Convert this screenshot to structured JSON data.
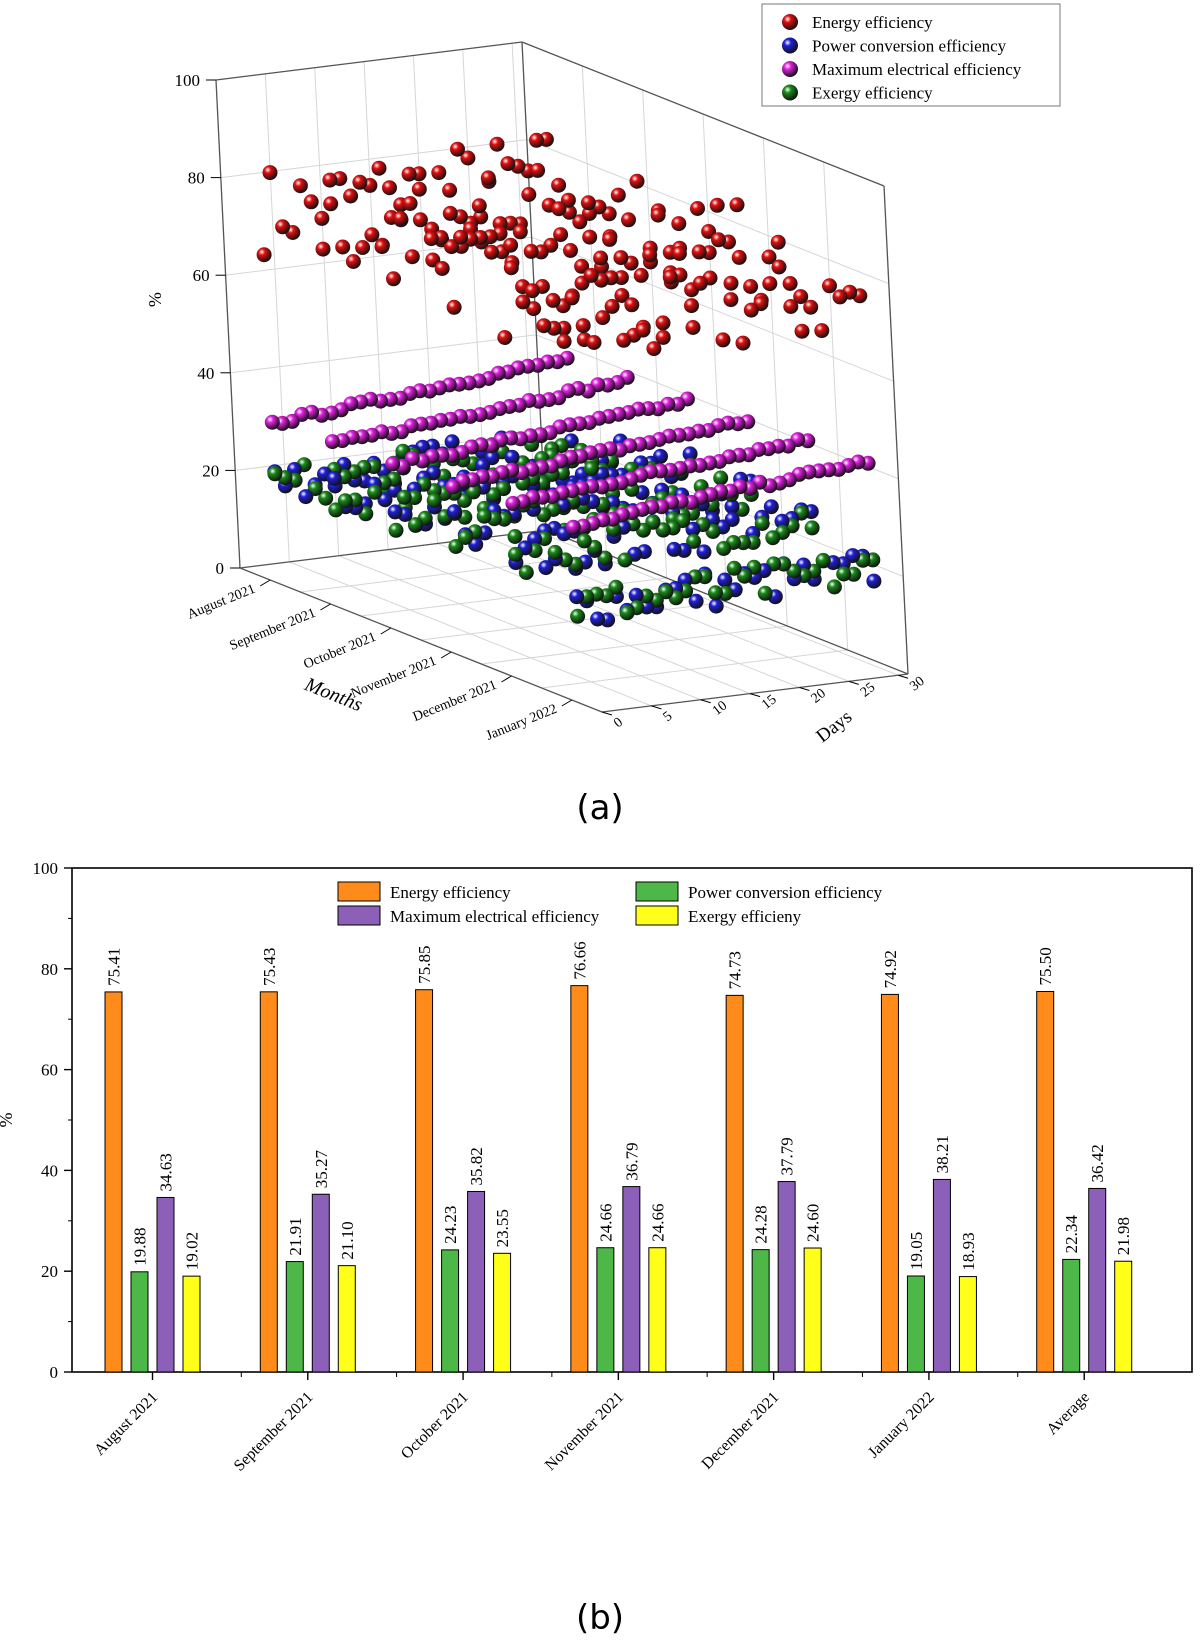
{
  "panel_a": {
    "caption": "(a)",
    "chart_data": {
      "type": "scatter",
      "projection": "3d",
      "xlabel": "Months",
      "ylabel": "Days",
      "zlabel": "%",
      "x_categories": [
        "August 2021",
        "September 2021",
        "October 2021",
        "November 2021",
        "December 2021",
        "January 2022"
      ],
      "y_ticks": [
        0,
        5,
        10,
        15,
        20,
        25,
        30
      ],
      "z_ticks": [
        0,
        20,
        40,
        60,
        80,
        100
      ],
      "zlim": [
        0,
        100
      ],
      "ylim": [
        0,
        31
      ],
      "grid": true,
      "legend_position": "top-right",
      "series": [
        {
          "name": "Energy efficiency",
          "color": "#e01010",
          "month_means": [
            75.41,
            75.43,
            75.85,
            76.66,
            74.73,
            74.92
          ],
          "spread": 9
        },
        {
          "name": "Power conversion efficiency",
          "color": "#1f1fd8",
          "month_means": [
            19.88,
            21.91,
            24.23,
            24.66,
            24.28,
            19.05
          ],
          "spread": 4
        },
        {
          "name": "Maximum electrical efficiency",
          "color": "#e020e0",
          "month_means": [
            34.63,
            35.27,
            35.82,
            36.79,
            37.79,
            38.21
          ],
          "spread": 1.2
        },
        {
          "name": "Exergy efficiency",
          "color": "#1a8a1a",
          "month_means": [
            19.02,
            21.1,
            23.55,
            24.66,
            24.6,
            18.93
          ],
          "spread": 4
        }
      ]
    }
  },
  "panel_b": {
    "caption": "(b)",
    "chart_data": {
      "type": "bar",
      "categories": [
        "August 2021",
        "September 2021",
        "October 2021",
        "November 2021",
        "December 2021",
        "January 2022",
        "Average"
      ],
      "ylabel": "%",
      "ylim": [
        0,
        100
      ],
      "y_ticks": [
        0,
        20,
        40,
        60,
        80,
        100
      ],
      "legend_position": "top-center",
      "series": [
        {
          "name": "Energy efficiency",
          "color": "#ff8c1a",
          "values": [
            75.41,
            75.43,
            75.85,
            76.66,
            74.73,
            74.92,
            75.5
          ],
          "labels": [
            "75.41",
            "75.43",
            "75.85",
            "76.66",
            "74.73",
            "74.92",
            "75.50"
          ]
        },
        {
          "name": "Power conversion efficiency",
          "color": "#4db848",
          "values": [
            19.88,
            21.91,
            24.23,
            24.66,
            24.28,
            19.05,
            22.34
          ],
          "labels": [
            "19.88",
            "21.91",
            "24.23",
            "24.66",
            "24.28",
            "19.05",
            "22.34"
          ]
        },
        {
          "name": "Maximum electrical efficiency",
          "color": "#8c5fb8",
          "values": [
            34.63,
            35.27,
            35.82,
            36.79,
            37.79,
            38.21,
            36.42
          ],
          "labels": [
            "34.63",
            "35.27",
            "35.82",
            "36.79",
            "37.79",
            "38.21",
            "36.42"
          ]
        },
        {
          "name": "Exergy efficieny",
          "color": "#ffff1a",
          "values": [
            19.02,
            21.1,
            23.55,
            24.66,
            24.6,
            18.93,
            21.98
          ],
          "labels": [
            "19.02",
            "21.10",
            "23.55",
            "24.66",
            "24.60",
            "18.93",
            "21.98"
          ]
        }
      ]
    }
  }
}
